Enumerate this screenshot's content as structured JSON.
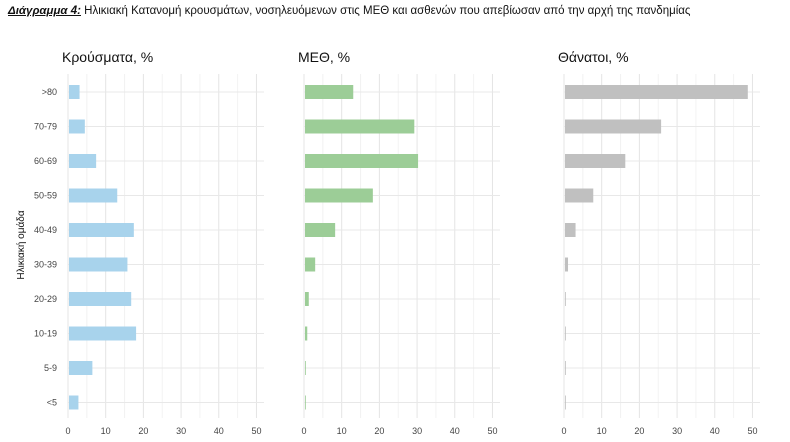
{
  "caption": {
    "lead": "Διάγραμμα 4:",
    "text": " Ηλικιακή Κατανομή κρουσμάτων, νοσηλευόμενων στις ΜΕΘ και ασθενών που απεβίωσαν από την αρχή της πανδημίας"
  },
  "chart_data": {
    "type": "bar",
    "orientation": "horizontal",
    "categories": [
      ">80",
      "70-79",
      "60-69",
      "50-59",
      "40-49",
      "30-39",
      "20-29",
      "10-19",
      "5-9",
      "<5"
    ],
    "ylabel": "Ηλικιακή ομάδα",
    "xlim": [
      0,
      52
    ],
    "xticks": [
      0,
      10,
      20,
      30,
      40,
      50
    ],
    "grid": true,
    "panels": [
      {
        "title": "Κρούσματα, %",
        "color": "#a8d3ec",
        "values": [
          2.8,
          4.2,
          7.2,
          12.8,
          17.2,
          15.5,
          16.5,
          17.8,
          6.2,
          2.5
        ]
      },
      {
        "title": "ΜΕΘ, %",
        "color": "#9ccd97",
        "values": [
          12.8,
          29.0,
          30.0,
          18.0,
          8.0,
          2.7,
          1.0,
          0.6,
          0.2,
          0.2
        ]
      },
      {
        "title": "Θάνατοι, %",
        "color": "#c0c0c0",
        "values": [
          48.5,
          25.5,
          16.0,
          7.5,
          2.8,
          0.8,
          0.2,
          0.1,
          0.05,
          0.05
        ]
      }
    ]
  }
}
